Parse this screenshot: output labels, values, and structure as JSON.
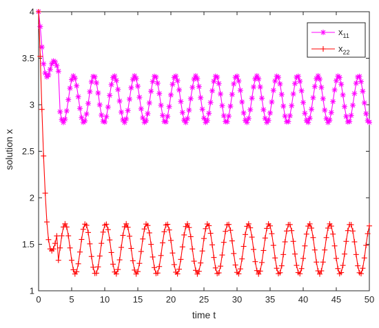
{
  "chart_data": {
    "type": "line",
    "title": "",
    "xlabel": "time t",
    "ylabel": "solution x",
    "xlim": [
      0,
      50
    ],
    "ylim": [
      1,
      4
    ],
    "x_ticks": [
      0,
      5,
      10,
      15,
      20,
      25,
      30,
      35,
      40,
      45,
      50
    ],
    "y_ticks": [
      1,
      1.5,
      2,
      2.5,
      3,
      3.5,
      4
    ],
    "grid": false,
    "legend_position": "top-right",
    "colors": {
      "x11": "#ff00ff",
      "x22": "#ff0000"
    },
    "series": [
      {
        "name": "x11",
        "name_main": "x",
        "name_sub": "11",
        "marker": "asterisk",
        "color": "#ff00ff",
        "initial": [
          [
            0,
            4.0
          ],
          [
            0.25,
            3.84
          ],
          [
            0.5,
            3.62
          ],
          [
            0.75,
            3.44
          ],
          [
            1.0,
            3.34
          ],
          [
            1.25,
            3.3
          ],
          [
            1.5,
            3.32
          ],
          [
            1.75,
            3.38
          ],
          [
            2.0,
            3.44
          ],
          [
            2.25,
            3.47
          ],
          [
            2.5,
            3.46
          ],
          [
            2.75,
            3.42
          ],
          [
            3.0,
            3.36
          ]
        ],
        "oscillation": {
          "from": 3.0,
          "to": 50,
          "center": 3.06,
          "amplitude": 0.25,
          "period": 3.08,
          "phase_peak_at": 2.2
        },
        "sample_step": 0.25
      },
      {
        "name": "x22",
        "name_main": "x",
        "name_sub": "22",
        "marker": "plus",
        "color": "#ff0000",
        "initial": [
          [
            0,
            4.0
          ],
          [
            0.25,
            3.52
          ],
          [
            0.5,
            2.95
          ],
          [
            0.75,
            2.45
          ],
          [
            1.0,
            2.05
          ],
          [
            1.25,
            1.74
          ],
          [
            1.5,
            1.55
          ],
          [
            1.75,
            1.45
          ],
          [
            2.0,
            1.43
          ],
          [
            2.25,
            1.45
          ],
          [
            2.5,
            1.51
          ],
          [
            2.75,
            1.59
          ]
        ],
        "oscillation": {
          "from": 2.75,
          "to": 50,
          "center": 1.45,
          "amplitude": 0.27,
          "period": 3.08,
          "phase_peak_at": 4.0
        },
        "sample_step": 0.25
      }
    ]
  }
}
